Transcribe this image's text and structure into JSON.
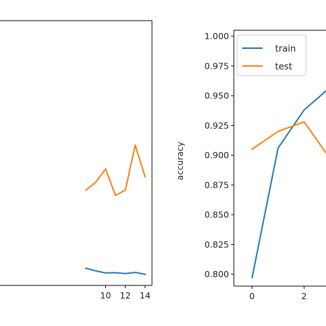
{
  "chart_data": [
    {
      "type": "line",
      "title": "",
      "xlabel": "",
      "ylabel": "",
      "xlim": [
        -0.7,
        14.7
      ],
      "ylim": [
        0.0,
        1.0
      ],
      "x_ticks": [
        10,
        12,
        14
      ],
      "x_tick_labels": [
        "10",
        "12",
        "14"
      ],
      "grid": false,
      "series": [
        {
          "color": "#1f77b4",
          "x": [
            8,
            9,
            10,
            11,
            12,
            13,
            14
          ],
          "y": [
            0.065,
            0.055,
            0.047,
            0.048,
            0.045,
            0.049,
            0.042
          ]
        },
        {
          "color": "#ff7f0e",
          "x": [
            8,
            9,
            10,
            11,
            12,
            13,
            14
          ],
          "y": [
            0.36,
            0.39,
            0.44,
            0.34,
            0.36,
            0.53,
            0.41
          ]
        }
      ]
    },
    {
      "type": "line",
      "title": "",
      "xlabel": "",
      "ylabel": "accuracy",
      "xlim": [
        -0.7,
        3.0
      ],
      "ylim": [
        0.79,
        1.005
      ],
      "x_ticks": [
        0,
        2
      ],
      "x_tick_labels": [
        "0",
        "2"
      ],
      "y_ticks": [
        0.8,
        0.825,
        0.85,
        0.875,
        0.9,
        0.925,
        0.95,
        0.975,
        1.0
      ],
      "y_tick_labels": [
        "0.800",
        "0.825",
        "0.850",
        "0.875",
        "0.900",
        "0.925",
        "0.950",
        "0.975",
        "1.000"
      ],
      "grid": false,
      "legend_position": "top-left",
      "series": [
        {
          "name": "train",
          "color": "#1f77b4",
          "x": [
            0,
            1,
            2,
            3
          ],
          "y": [
            0.797,
            0.906,
            0.938,
            0.957
          ]
        },
        {
          "name": "test",
          "color": "#ff7f0e",
          "x": [
            0,
            1,
            2,
            3
          ],
          "y": [
            0.905,
            0.92,
            0.928,
            0.897
          ]
        }
      ]
    }
  ]
}
